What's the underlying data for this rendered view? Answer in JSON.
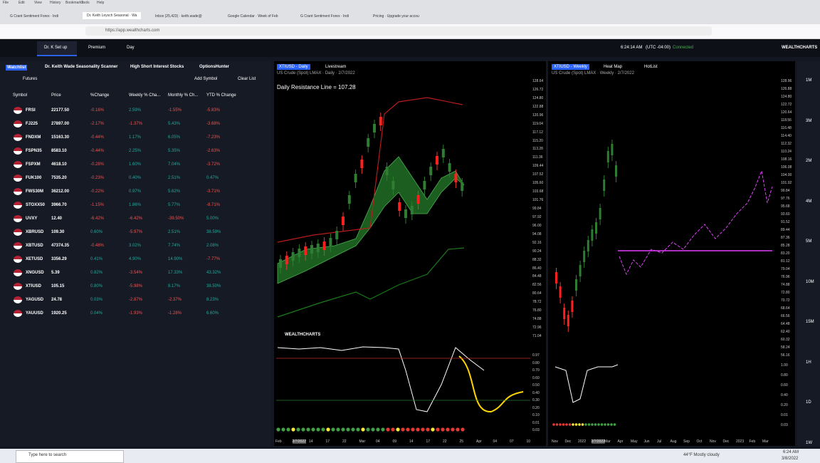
{
  "menu": [
    "File",
    "Edit",
    "View",
    "History",
    "Bookmarks",
    "Tools",
    "Help"
  ],
  "tabs": [
    "G Crant Sentiment Forex · Indi",
    "Dr. Keith Leysch Seasonal · Wa",
    "Inbox (25,423) · keith.wade@",
    "Google Calendar · Week of Feb",
    "G Crant Sentiment Forex · Indi",
    "Pricing · Upgrade your accou"
  ],
  "url": "https://app.wealthcharts.com",
  "nav": {
    "items": [
      "Dr. K Set up",
      "Premium",
      "Day"
    ],
    "time": "6:24:14 AM",
    "tz": "(UTC -04:00)",
    "status": "Connected",
    "brand": "WEALTHCHARTS"
  },
  "watchlist": {
    "tabs": [
      "Watchlist",
      "Dr. Keith Wade Seasonality Scanner",
      "High Short Interest Stocks",
      "OptionsHunter"
    ],
    "list": "Futures",
    "add": "Add Symbol",
    "clear": "Clear List",
    "columns": [
      "Symbol",
      "Price",
      "%Change",
      "Weekly % Cha...",
      "Monthly % Ch...",
      "YTD % Change"
    ],
    "rows": [
      [
        "FRSI",
        "22177.50",
        "-0.16%",
        "2.59%",
        "-1.55%",
        "-5.83%"
      ],
      [
        "FJ225",
        "27897.00",
        "-2.17%",
        "-1.37%",
        "5.43%",
        "-3.68%"
      ],
      [
        "FNDXM",
        "15163.30",
        "-0.44%",
        "1.17%",
        "6.05%",
        "-7.23%"
      ],
      [
        "FSPN35",
        "8583.10",
        "-0.44%",
        "2.25%",
        "5.35%",
        "-2.63%"
      ],
      [
        "FSPXM",
        "4618.10",
        "-0.28%",
        "1.60%",
        "7.04%",
        "-3.72%"
      ],
      [
        "FUK100",
        "7535.20",
        "-0.23%",
        "0.40%",
        "2.51%",
        "0.47%"
      ],
      [
        "FWS30M",
        "36212.00",
        "-0.22%",
        "0.97%",
        "5.62%",
        "-3.71%"
      ],
      [
        "STOXX50",
        "3966.70",
        "-1.15%",
        "1.86%",
        "5.77%",
        "-8.71%"
      ],
      [
        "UVXY",
        "12.40",
        "-6.42%",
        "-6.42%",
        "-39.50%",
        "5.00%"
      ],
      [
        "XBRUSD",
        "109.30",
        "0.60%",
        "-5.97%",
        "2.51%",
        "38.59%"
      ],
      [
        "XBTUSD",
        "47374.35",
        "-0.48%",
        "3.02%",
        "7.74%",
        "2.08%"
      ],
      [
        "XETUSD",
        "3356.29",
        "0.41%",
        "4.90%",
        "14.90%",
        "-7.77%"
      ],
      [
        "XNGUSD",
        "5.39",
        "0.82%",
        "-3.54%",
        "17.33%",
        "43.32%"
      ],
      [
        "XTIUSD",
        "105.15",
        "0.80%",
        "-5.98%",
        "8.17%",
        "38.50%"
      ],
      [
        "YAGUSD",
        "24.78",
        "0.03%",
        "-2.87%",
        "-2.37%",
        "8.23%"
      ],
      [
        "YAUUSD",
        "1920.25",
        "0.04%",
        "-1.93%",
        "-1.28%",
        "6.60%"
      ]
    ]
  },
  "chart1": {
    "title": "XTIUSD - Daily",
    "tab": "Livestream",
    "info": "US Crude (Spot) LMAX · Daily · 2/7/2022",
    "annotation": "Daily Resistance Line = 107.28",
    "brand": "WEALTHCHARTS",
    "prices": [
      "128.64",
      "126.72",
      "124.80",
      "122.88",
      "120.96",
      "119.04",
      "117.12",
      "115.20",
      "113.28",
      "111.36",
      "109.44",
      "107.52",
      "105.60",
      "103.68",
      "101.76",
      "99.84",
      "97.92",
      "96.00",
      "94.08",
      "92.16",
      "90.24",
      "88.32",
      "86.40",
      "84.48",
      "82.56",
      "80.64",
      "78.72",
      "76.80",
      "74.88",
      "72.96",
      "71.04"
    ],
    "osc": [
      "0.97",
      "0.80",
      "0.70",
      "0.60",
      "0.50",
      "0.40",
      "0.30",
      "0.20",
      "0.10",
      "0.01",
      "0.03"
    ],
    "dates": [
      "Feb",
      "2/7/2022",
      "14",
      "17",
      "22",
      "Mar",
      "04",
      "09",
      "14",
      "17",
      "22",
      "25",
      "Apr",
      "04",
      "07",
      "10"
    ]
  },
  "chart2": {
    "title": "XTIUSD - Weekly",
    "tabs": [
      "Heat Map",
      "HotList"
    ],
    "info": "US Crude (Spot) LMAX · Weekly · 2/7/2022",
    "prices": [
      "128.96",
      "126.88",
      "124.80",
      "122.72",
      "120.64",
      "118.56",
      "116.48",
      "114.40",
      "112.32",
      "110.24",
      "108.16",
      "106.08",
      "104.00",
      "101.92",
      "99.84",
      "97.76",
      "95.68",
      "93.60",
      "91.52",
      "89.44",
      "87.36",
      "85.28",
      "83.20",
      "81.12",
      "79.04",
      "76.96",
      "74.88",
      "72.80",
      "70.72",
      "68.64",
      "66.56",
      "64.48",
      "62.40",
      "60.32",
      "58.24",
      "56.16"
    ],
    "osc": [
      "1.00",
      "0.80",
      "0.60",
      "0.40",
      "0.20",
      "0.01",
      "0.03"
    ],
    "dates": [
      "Nov",
      "Dec",
      "2022",
      "2/7/2022",
      "Mar",
      "Apr",
      "May",
      "Jun",
      "Jul",
      "Aug",
      "Sep",
      "Oct",
      "Nov",
      "Dec",
      "2023",
      "Feb",
      "Mar"
    ]
  },
  "timeframes": [
    "1M",
    "3M",
    "2M",
    "4M",
    "5M",
    "10M",
    "15M",
    "1H",
    "1D",
    "1W"
  ],
  "taskbar": {
    "search": "Type here to search",
    "weather": "44°F Mostly cloudy",
    "time": "6:24 AM",
    "date": "3/8/2022"
  }
}
